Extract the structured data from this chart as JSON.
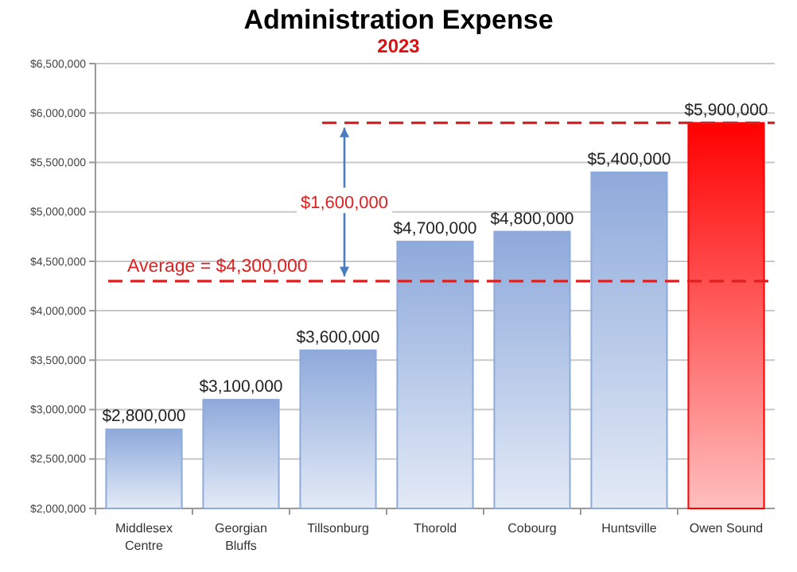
{
  "chart_data": {
    "type": "bar",
    "title": "Administration Expense",
    "subtitle": "2023",
    "categories": [
      "Middlesex Centre",
      "Georgian Bluffs",
      "Tillsonburg",
      "Thorold",
      "Cobourg",
      "Huntsville",
      "Owen Sound"
    ],
    "values": [
      2800000,
      3100000,
      3600000,
      4700000,
      4800000,
      5400000,
      5900000
    ],
    "colors": [
      "#8eaadb",
      "#8eaadb",
      "#8eaadb",
      "#8eaadb",
      "#8eaadb",
      "#8eaadb",
      "#ff0000"
    ],
    "value_labels": [
      "$2,800,000",
      "$3,100,000",
      "$3,600,000",
      "$4,700,000",
      "$4,800,000",
      "$5,400,000",
      "$5,900,000"
    ],
    "ylim": [
      2000000,
      6500000
    ],
    "yticks": [
      {
        "value": 2000000,
        "label": "$2,000,000"
      },
      {
        "value": 2500000,
        "label": "$2,500,000"
      },
      {
        "value": 3000000,
        "label": "$3,000,000"
      },
      {
        "value": 3500000,
        "label": "$3,500,000"
      },
      {
        "value": 4000000,
        "label": "$4,000,000"
      },
      {
        "value": 4500000,
        "label": "$4,500,000"
      },
      {
        "value": 5000000,
        "label": "$5,000,000"
      },
      {
        "value": 5500000,
        "label": "$5,500,000"
      },
      {
        "value": 6000000,
        "label": "$6,000,000"
      },
      {
        "value": 6500000,
        "label": "$6,500,000"
      }
    ],
    "grid": "y",
    "ref_lines": [
      {
        "axis": "y",
        "value": 4300000,
        "label": "Average = $4,300,000",
        "color": "#e02020",
        "line_style": "dashed"
      },
      {
        "axis": "y",
        "value": 5900000,
        "label": null,
        "color": "#e02020",
        "line_style": "dashed"
      }
    ],
    "annotations": [
      "$1,600,000"
    ]
  }
}
